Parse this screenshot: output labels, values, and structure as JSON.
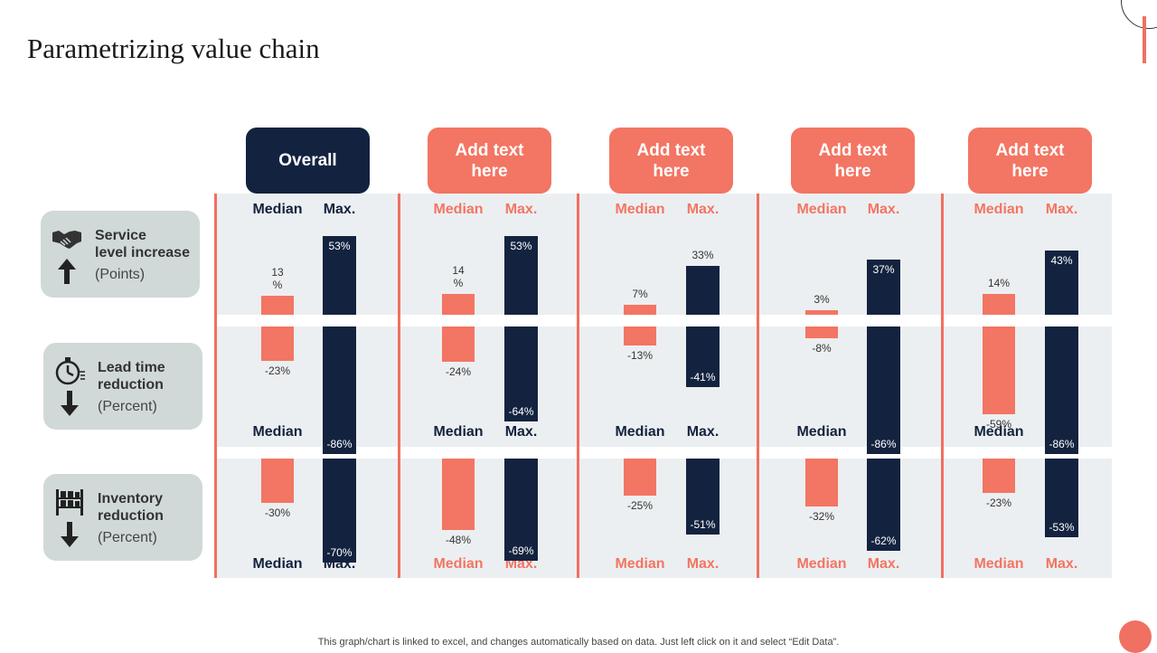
{
  "title": "Parametrizing value chain",
  "footnote": "This graph/chart is linked to excel,  and changes automatically based on data. Just left click on it and select “Edit Data”.",
  "colors": {
    "median": "#f37563",
    "max": "#13233f",
    "accent": "#f07062",
    "panel": "#eceff1",
    "metric_bg": "#d0d9d7"
  },
  "header": {
    "overall": "Overall",
    "group2": "Add text\nhere",
    "group3": "Add text\nhere",
    "group4": "Add text\nhere",
    "group5": "Add text\nhere"
  },
  "axis_labels": {
    "median": "Median",
    "max": "Max."
  },
  "metrics": [
    {
      "name": "Service\nlevel increase",
      "unit": "(Points)",
      "icon": "handshake-icon",
      "arrow": "arrow-up-icon"
    },
    {
      "name": "Lead time\nreduction",
      "unit": "(Percent)",
      "icon": "stopwatch-icon",
      "arrow": "arrow-down-icon"
    },
    {
      "name": "Inventory\nreduction",
      "unit": "(Percent)",
      "icon": "warehouse-shelf-icon",
      "arrow": "arrow-down-icon"
    }
  ],
  "chart_data": {
    "type": "bar",
    "categories": [
      "Overall",
      "Add text here",
      "Add text here",
      "Add text here",
      "Add text here"
    ],
    "series_labels": [
      "Median",
      "Max."
    ],
    "rows": [
      {
        "metric": "Service level increase",
        "median": [
          13,
          14,
          7,
          3,
          14
        ],
        "max": [
          53,
          53,
          33,
          37,
          43
        ],
        "median_labels": [
          "13\n%",
          "14\n%",
          "7%",
          "3%",
          "14%"
        ],
        "max_labels": [
          "53%",
          "53%",
          "33%",
          "37%",
          "43%"
        ]
      },
      {
        "metric": "Lead time reduction",
        "median": [
          -23,
          -24,
          -13,
          -8,
          -59
        ],
        "max": [
          -86,
          -64,
          -41,
          -86,
          -86
        ],
        "median_labels": [
          "-23%",
          "-24%",
          "-13%",
          "-8%",
          "-59%"
        ],
        "max_labels": [
          "-86%",
          "-64%",
          "-41%",
          "-86%",
          "-86%"
        ]
      },
      {
        "metric": "Inventory reduction",
        "median": [
          -30,
          -48,
          -25,
          -32,
          -23
        ],
        "max": [
          -70,
          -69,
          -51,
          -62,
          -53
        ],
        "median_labels": [
          "-30%",
          "-48%",
          "-25%",
          "-32%",
          "-23%"
        ],
        "max_labels": [
          "-70%",
          "-69%",
          "-51%",
          "-62%",
          "-53%"
        ]
      }
    ]
  }
}
